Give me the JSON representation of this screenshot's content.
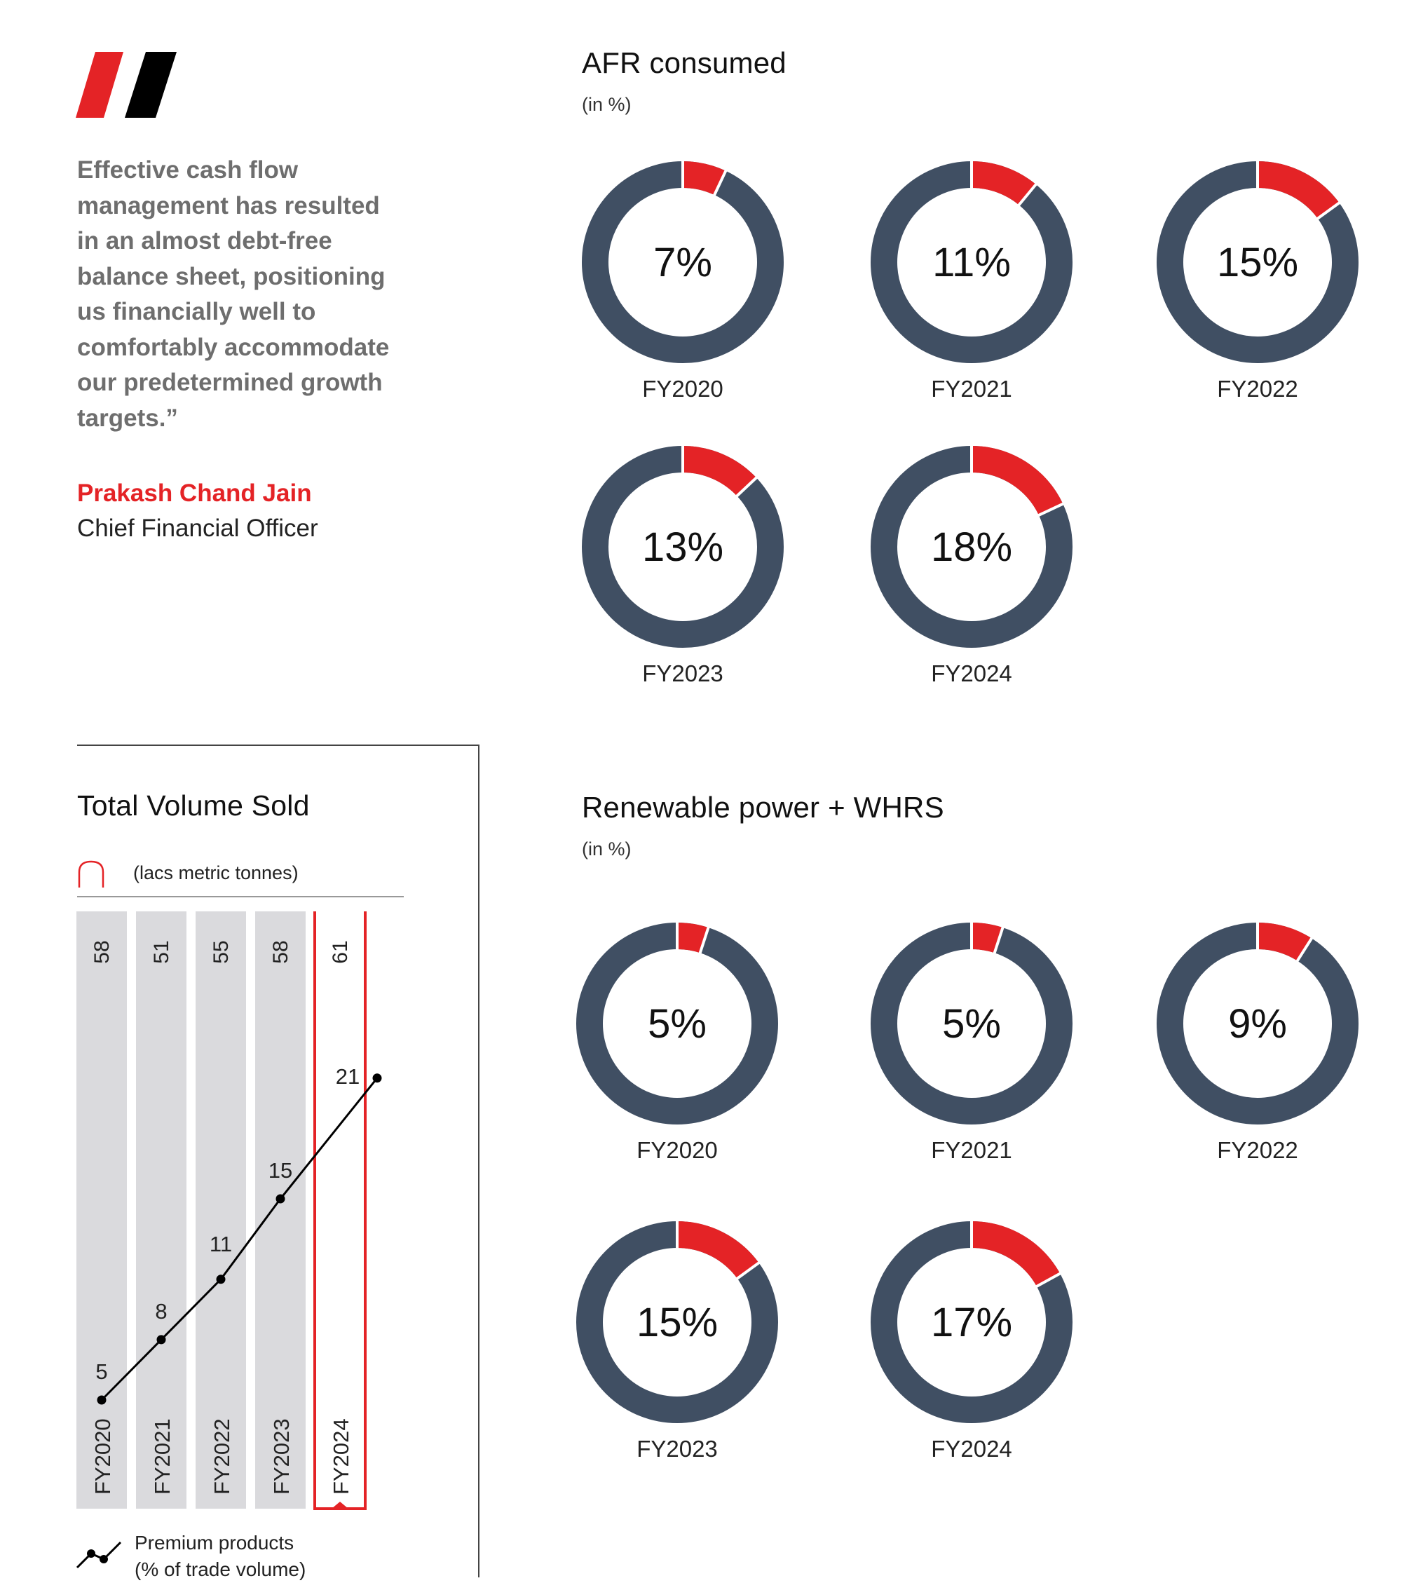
{
  "quote": {
    "text": "Effective cash flow management has resulted in an almost debt-free balance sheet, positioning us financially well to comfortably accommodate our predetermined growth targets.”",
    "author_name": "Prakash Chand Jain",
    "author_title": "Chief Financial Officer"
  },
  "colors": {
    "accent_red": "#e42326",
    "donut_dark": "#404f63",
    "bar_grey": "#dadadd",
    "bar_bg": "#ececef",
    "quote_grey": "#6e6e6e"
  },
  "chart_data": [
    {
      "id": "afr",
      "type": "pie",
      "title": "AFR consumed",
      "subtitle": "(in %)",
      "categories": [
        "FY2020",
        "FY2021",
        "FY2022",
        "FY2023",
        "FY2024"
      ],
      "values": [
        7,
        11,
        15,
        13,
        18
      ],
      "value_labels": [
        "7%",
        "11%",
        "15%",
        "13%",
        "18%"
      ],
      "max": 100
    },
    {
      "id": "renewable",
      "type": "pie",
      "title": "Renewable power + WHRS",
      "subtitle": "(in %)",
      "categories": [
        "FY2020",
        "FY2021",
        "FY2022",
        "FY2023",
        "FY2024"
      ],
      "values": [
        5,
        5,
        9,
        15,
        17
      ],
      "value_labels": [
        "5%",
        "5%",
        "9%",
        "15%",
        "17%"
      ],
      "max": 100
    },
    {
      "id": "volume",
      "type": "bar",
      "title": "Total Volume Sold",
      "bar_legend": "(lacs metric tonnes)",
      "line_legend_1": "Premium products",
      "line_legend_2": "(% of trade volume)",
      "categories": [
        "FY2020",
        "FY2021",
        "FY2022",
        "FY2023",
        "FY2024"
      ],
      "series": [
        {
          "name": "(lacs metric tonnes)",
          "values": [
            58,
            51,
            55,
            58,
            61
          ]
        },
        {
          "name": "Premium products (% of trade volume)",
          "values": [
            5,
            8,
            11,
            15,
            21
          ]
        }
      ],
      "highlight": "FY2024"
    }
  ]
}
